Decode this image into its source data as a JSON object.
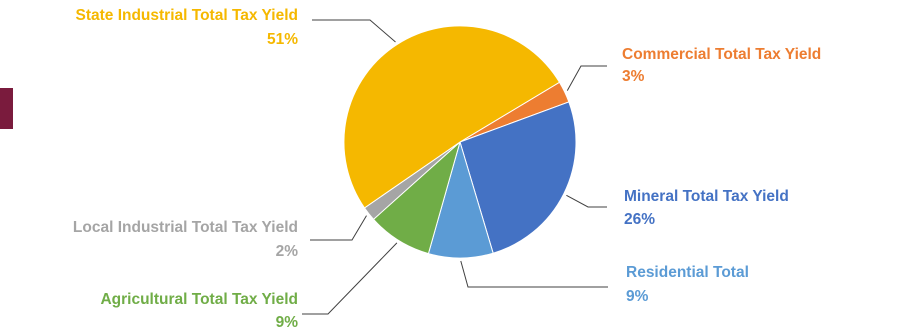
{
  "chart_data": {
    "type": "pie",
    "title": "",
    "start_angle_deg": 59,
    "slices": [
      {
        "label": "Commercial Total Tax Yield",
        "percent_label": "3%",
        "value": 3,
        "color": "#ed7d31"
      },
      {
        "label": "Mineral Total Tax Yield",
        "percent_label": "26%",
        "value": 26,
        "color": "#4472c4"
      },
      {
        "label": "Residential Total",
        "percent_label": "9%",
        "value": 9,
        "color": "#5b9bd5"
      },
      {
        "label": "Agricultural Total Tax Yield",
        "percent_label": "9%",
        "value": 9,
        "color": "#70ad47"
      },
      {
        "label": "Local Industrial Total Tax Yield",
        "percent_label": "2%",
        "value": 2,
        "color": "#a5a5a5"
      },
      {
        "label": "State Industrial Total Tax Yield",
        "percent_label": "51%",
        "value": 51,
        "color": "#f5b800"
      }
    ]
  }
}
